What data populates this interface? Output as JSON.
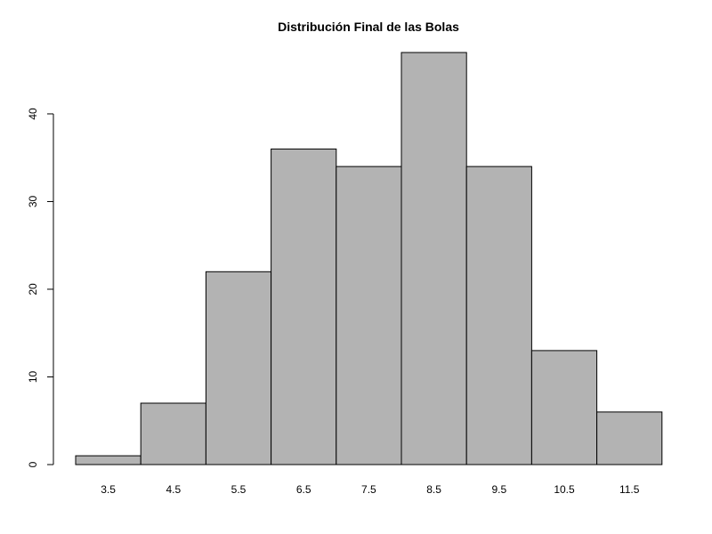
{
  "chart_data": {
    "type": "bar",
    "title": "Distribución Final de las Bolas",
    "xlabel": "",
    "ylabel": "",
    "categories": [
      "3.5",
      "4.5",
      "5.5",
      "6.5",
      "7.5",
      "8.5",
      "9.5",
      "10.5",
      "11.5"
    ],
    "values": [
      1,
      7,
      22,
      36,
      34,
      47,
      34,
      13,
      6
    ],
    "ylim": [
      0,
      47
    ],
    "y_ticks": [
      "0",
      "10",
      "20",
      "30",
      "40"
    ],
    "bar_color": "#b3b3b3",
    "grid": false
  }
}
